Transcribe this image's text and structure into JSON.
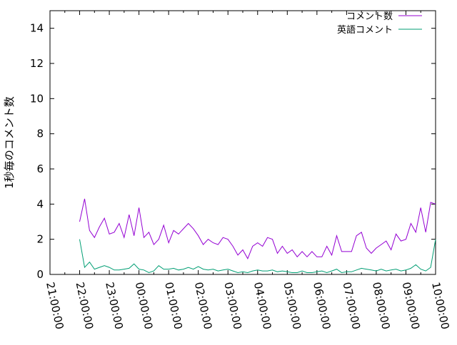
{
  "chart_data": {
    "type": "line",
    "title": "",
    "xlabel": "",
    "ylabel": "1秒毎のコメント数",
    "ylim": [
      0,
      15
    ],
    "xlim": [
      "21:00:00",
      "10:00:00"
    ],
    "yticks": [
      "0",
      "2",
      "4",
      "6",
      "8",
      "10",
      "12",
      "14"
    ],
    "xticks": [
      "21:00:00",
      "22:00:00",
      "23:00:00",
      "00:00:00",
      "01:00:00",
      "02:00:00",
      "03:00:00",
      "04:00:00",
      "05:00:00",
      "06:00:00",
      "07:00:00",
      "08:00:00",
      "09:00:00",
      "10:00:00"
    ],
    "grid": false,
    "legend": "top-right",
    "x": [
      "22:00",
      "22:10",
      "22:20",
      "22:30",
      "22:40",
      "22:50",
      "23:00",
      "23:10",
      "23:20",
      "23:30",
      "23:40",
      "23:50",
      "00:00",
      "00:10",
      "00:20",
      "00:30",
      "00:40",
      "00:50",
      "01:00",
      "01:10",
      "01:20",
      "01:30",
      "01:40",
      "01:50",
      "02:00",
      "02:10",
      "02:20",
      "02:30",
      "02:40",
      "02:50",
      "03:00",
      "03:10",
      "03:20",
      "03:30",
      "03:40",
      "03:50",
      "04:00",
      "04:10",
      "04:20",
      "04:30",
      "04:40",
      "04:50",
      "05:00",
      "05:10",
      "05:20",
      "05:30",
      "05:40",
      "05:50",
      "06:00",
      "06:10",
      "06:20",
      "06:30",
      "06:40",
      "06:50",
      "07:00",
      "07:10",
      "07:20",
      "07:30",
      "07:40",
      "07:50",
      "08:00",
      "08:10",
      "08:20",
      "08:30",
      "08:40",
      "08:50",
      "09:00",
      "09:10",
      "09:20",
      "09:30",
      "09:40",
      "09:50",
      "10:00"
    ],
    "series": [
      {
        "name": "コメント数",
        "color": "#9400d3",
        "values": [
          3.0,
          4.3,
          2.5,
          2.1,
          2.7,
          3.2,
          2.3,
          2.4,
          2.9,
          2.1,
          3.4,
          2.2,
          3.8,
          2.1,
          2.4,
          1.7,
          2.0,
          2.8,
          1.8,
          2.5,
          2.3,
          2.6,
          2.9,
          2.6,
          2.2,
          1.7,
          2.0,
          1.8,
          1.7,
          2.1,
          2.0,
          1.6,
          1.1,
          1.4,
          0.9,
          1.6,
          1.8,
          1.6,
          2.1,
          2.0,
          1.2,
          1.6,
          1.2,
          1.4,
          1.0,
          1.3,
          1.0,
          1.3,
          1.0,
          1.0,
          1.6,
          1.1,
          2.2,
          1.3,
          1.3,
          1.3,
          2.2,
          2.4,
          1.5,
          1.2,
          1.5,
          1.7,
          1.9,
          1.4,
          2.3,
          1.9,
          2.0,
          2.9,
          2.4,
          3.8,
          2.4,
          4.1,
          4.0
        ]
      },
      {
        "name": "英語コメント",
        "color": "#009e73",
        "values": [
          2.0,
          0.4,
          0.7,
          0.3,
          0.4,
          0.5,
          0.4,
          0.25,
          0.25,
          0.3,
          0.35,
          0.6,
          0.3,
          0.25,
          0.1,
          0.2,
          0.5,
          0.3,
          0.3,
          0.35,
          0.25,
          0.3,
          0.4,
          0.3,
          0.45,
          0.3,
          0.25,
          0.3,
          0.2,
          0.25,
          0.3,
          0.2,
          0.1,
          0.15,
          0.1,
          0.2,
          0.25,
          0.2,
          0.2,
          0.25,
          0.15,
          0.2,
          0.15,
          0.1,
          0.1,
          0.2,
          0.1,
          0.1,
          0.15,
          0.2,
          0.1,
          0.2,
          0.3,
          0.1,
          0.15,
          0.15,
          0.25,
          0.35,
          0.3,
          0.25,
          0.2,
          0.3,
          0.2,
          0.25,
          0.3,
          0.2,
          0.25,
          0.35,
          0.55,
          0.3,
          0.2,
          0.4,
          2.0
        ]
      }
    ]
  }
}
